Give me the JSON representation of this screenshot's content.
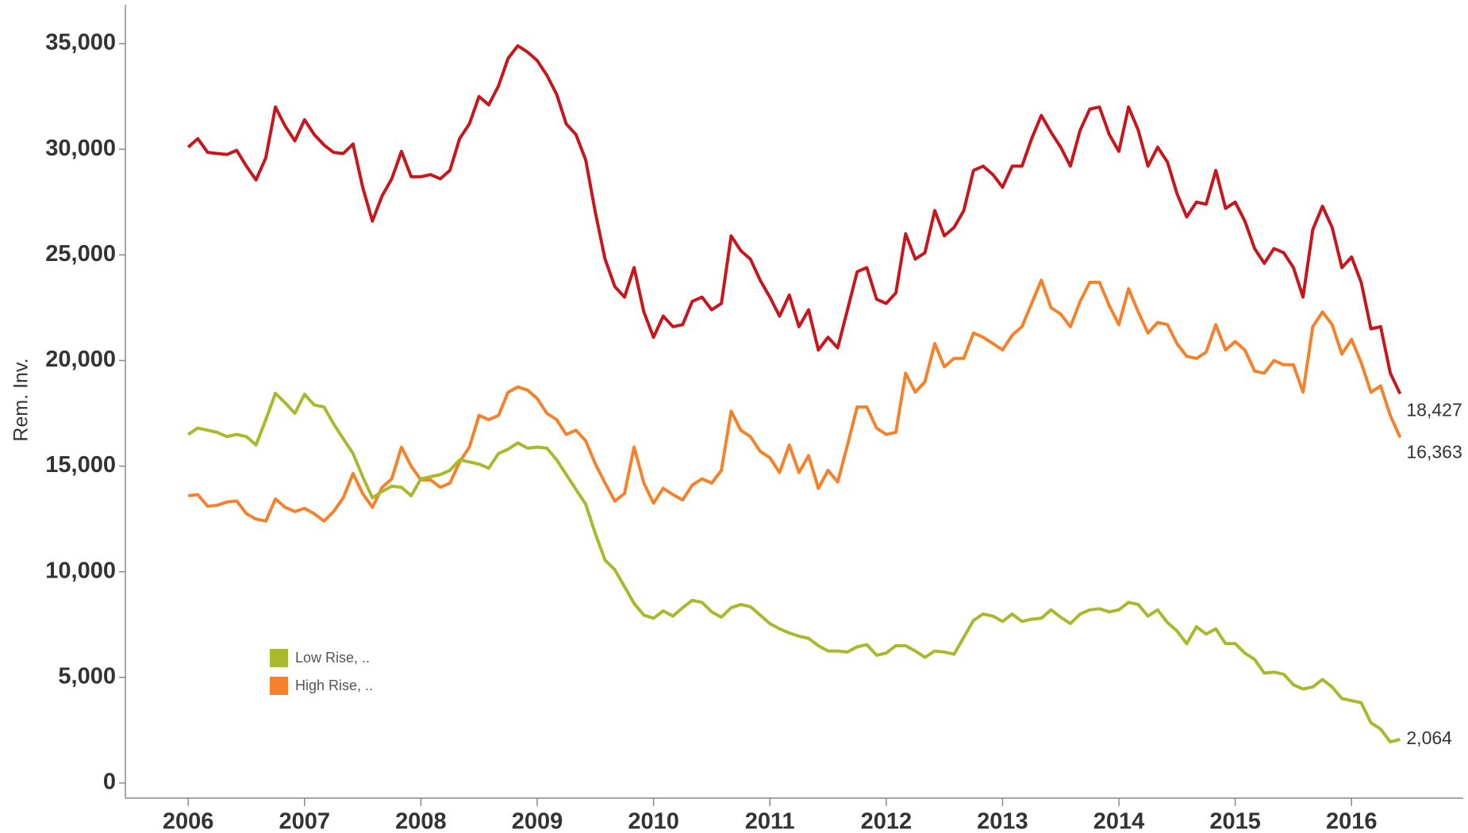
{
  "chart_data": {
    "type": "line",
    "ylabel": "Rem. Inv.",
    "x": [
      2006,
      2006.083,
      2006.167,
      2006.25,
      2006.333,
      2006.417,
      2006.5,
      2006.583,
      2006.667,
      2006.75,
      2006.833,
      2006.917,
      2007,
      2007.083,
      2007.167,
      2007.25,
      2007.333,
      2007.417,
      2007.5,
      2007.583,
      2007.667,
      2007.75,
      2007.833,
      2007.917,
      2008,
      2008.083,
      2008.167,
      2008.25,
      2008.333,
      2008.417,
      2008.5,
      2008.583,
      2008.667,
      2008.75,
      2008.833,
      2008.917,
      2009,
      2009.083,
      2009.167,
      2009.25,
      2009.333,
      2009.417,
      2009.5,
      2009.583,
      2009.667,
      2009.75,
      2009.833,
      2009.917,
      2010,
      2010.083,
      2010.167,
      2010.25,
      2010.333,
      2010.417,
      2010.5,
      2010.583,
      2010.667,
      2010.75,
      2010.833,
      2010.917,
      2011,
      2011.083,
      2011.167,
      2011.25,
      2011.333,
      2011.417,
      2011.5,
      2011.583,
      2011.667,
      2011.75,
      2011.833,
      2011.917,
      2012,
      2012.083,
      2012.167,
      2012.25,
      2012.333,
      2012.417,
      2012.5,
      2012.583,
      2012.667,
      2012.75,
      2012.833,
      2012.917,
      2013,
      2013.083,
      2013.167,
      2013.25,
      2013.333,
      2013.417,
      2013.5,
      2013.583,
      2013.667,
      2013.75,
      2013.833,
      2013.917,
      2014,
      2014.083,
      2014.167,
      2014.25,
      2014.333,
      2014.417,
      2014.5,
      2014.583,
      2014.667,
      2014.75,
      2014.833,
      2014.917,
      2015,
      2015.083,
      2015.167,
      2015.25,
      2015.333,
      2015.417,
      2015.5,
      2015.583,
      2015.667,
      2015.75,
      2015.833,
      2015.917,
      2016,
      2016.083,
      2016.167,
      2016.25,
      2016.333,
      2016.417
    ],
    "series": [
      {
        "color": "#c8161d",
        "values": [
          30100,
          30500,
          29850,
          29800,
          29750,
          29950,
          29200,
          28550,
          29600,
          32000,
          31100,
          30400,
          31400,
          30700,
          30200,
          29850,
          29800,
          30250,
          28200,
          26600,
          27800,
          28600,
          29900,
          28700,
          28700,
          28800,
          28600,
          29000,
          30500,
          31200,
          32500,
          32100,
          33000,
          34300,
          34900,
          34600,
          34200,
          33500,
          32600,
          31200,
          30700,
          29500,
          27000,
          24800,
          23500,
          23000,
          24400,
          22300,
          21100,
          22100,
          21600,
          21700,
          22800,
          23000,
          22400,
          22700,
          25900,
          25200,
          24800,
          23800,
          23000,
          22100,
          23100,
          21600,
          22400,
          20500,
          21100,
          20600,
          22400,
          24200,
          24400,
          22900,
          22700,
          23200,
          26000,
          24800,
          25100,
          27100,
          25900,
          26300,
          27100,
          29000,
          29200,
          28800,
          28200,
          29200,
          29200,
          30500,
          31600,
          30800,
          30100,
          29200,
          30900,
          31900,
          32000,
          30700,
          29900,
          32000,
          30900,
          29200,
          30100,
          29400,
          27900,
          26800,
          27500,
          27400,
          29000,
          27200,
          27500,
          26600,
          25300,
          24600,
          25300,
          25100,
          24400,
          23000,
          26200,
          27300,
          26300,
          24400,
          24900,
          23700,
          21500,
          21600,
          19400,
          18427
        ],
        "value_labels": [
          null,
          null,
          null,
          null,
          null,
          null,
          null,
          null,
          null,
          null,
          null,
          null,
          null,
          null,
          null,
          null,
          null,
          null,
          null,
          null,
          null,
          null,
          null,
          null,
          null,
          null,
          null,
          null,
          null,
          null,
          null,
          null,
          null,
          null,
          null,
          null,
          null,
          null,
          null,
          null,
          null,
          null,
          null,
          null,
          null,
          null,
          null,
          null,
          null,
          null,
          null,
          null,
          null,
          null,
          null,
          null,
          null,
          null,
          null,
          null,
          null,
          null,
          null,
          null,
          null,
          null,
          null,
          null,
          null,
          null,
          null,
          null,
          null,
          null,
          null,
          null,
          null,
          null,
          null,
          null,
          null,
          null,
          null,
          null,
          null,
          null,
          null,
          null,
          null,
          null,
          null,
          null,
          null,
          null,
          null,
          null,
          null,
          null,
          null,
          null,
          null,
          null,
          null,
          null,
          null,
          null,
          null,
          null,
          null,
          null,
          null,
          null,
          null,
          null,
          null,
          null,
          null,
          null,
          null,
          null,
          null,
          null,
          null,
          null,
          null,
          "18,427"
        ]
      },
      {
        "name": "High Rise, ..",
        "color": "#f5822a",
        "values": [
          13600,
          13650,
          13100,
          13150,
          13300,
          13350,
          12750,
          12500,
          12400,
          13450,
          13050,
          12850,
          13000,
          12750,
          12400,
          12850,
          13500,
          14650,
          13700,
          13050,
          14000,
          14400,
          15900,
          15000,
          14350,
          14350,
          14000,
          14200,
          15200,
          15900,
          17400,
          17200,
          17400,
          18500,
          18750,
          18600,
          18200,
          17500,
          17200,
          16500,
          16700,
          16200,
          15100,
          14200,
          13350,
          13700,
          15900,
          14200,
          13250,
          13950,
          13650,
          13400,
          14100,
          14400,
          14200,
          14800,
          17600,
          16700,
          16400,
          15700,
          15400,
          14700,
          16000,
          14700,
          15500,
          13950,
          14800,
          14250,
          16000,
          17800,
          17800,
          16800,
          16500,
          16600,
          19400,
          18500,
          19000,
          20800,
          19700,
          20100,
          20100,
          21300,
          21100,
          20800,
          20500,
          21200,
          21600,
          22700,
          23800,
          22500,
          22200,
          21600,
          22800,
          23700,
          23700,
          22600,
          21700,
          23400,
          22300,
          21300,
          21800,
          21700,
          20800,
          20200,
          20100,
          20400,
          21700,
          20500,
          20900,
          20500,
          19500,
          19400,
          20000,
          19800,
          19800,
          18500,
          21600,
          22300,
          21700,
          20300,
          21000,
          19900,
          18500,
          18800,
          17400,
          16363
        ],
        "value_labels": [
          null,
          null,
          null,
          null,
          null,
          null,
          null,
          null,
          null,
          null,
          null,
          null,
          null,
          null,
          null,
          null,
          null,
          null,
          null,
          null,
          null,
          null,
          null,
          null,
          null,
          null,
          null,
          null,
          null,
          null,
          null,
          null,
          null,
          null,
          null,
          null,
          null,
          null,
          null,
          null,
          null,
          null,
          null,
          null,
          null,
          null,
          null,
          null,
          null,
          null,
          null,
          null,
          null,
          null,
          null,
          null,
          null,
          null,
          null,
          null,
          null,
          null,
          null,
          null,
          null,
          null,
          null,
          null,
          null,
          null,
          null,
          null,
          null,
          null,
          null,
          null,
          null,
          null,
          null,
          null,
          null,
          null,
          null,
          null,
          null,
          null,
          null,
          null,
          null,
          null,
          null,
          null,
          null,
          null,
          null,
          null,
          null,
          null,
          null,
          null,
          null,
          null,
          null,
          null,
          null,
          null,
          null,
          null,
          null,
          null,
          null,
          null,
          null,
          null,
          null,
          null,
          null,
          null,
          null,
          null,
          null,
          null,
          null,
          null,
          null,
          "16,363"
        ]
      },
      {
        "name": "Low Rise, ..",
        "color": "#a8b92b",
        "values": [
          16500,
          16800,
          16700,
          16600,
          16400,
          16500,
          16400,
          16000,
          17200,
          18450,
          18000,
          17500,
          18400,
          17900,
          17800,
          17000,
          16300,
          15600,
          14500,
          13500,
          13800,
          14050,
          14000,
          13600,
          14400,
          14500,
          14600,
          14800,
          15300,
          15200,
          15100,
          14900,
          15600,
          15800,
          16100,
          15850,
          15900,
          15850,
          15300,
          14600,
          13900,
          13200,
          11800,
          10550,
          10100,
          9300,
          8500,
          7950,
          7800,
          8150,
          7900,
          8300,
          8650,
          8550,
          8100,
          7850,
          8300,
          8450,
          8350,
          7950,
          7550,
          7300,
          7100,
          6950,
          6850,
          6500,
          6250,
          6250,
          6200,
          6450,
          6550,
          6050,
          6150,
          6500,
          6500,
          6250,
          5950,
          6250,
          6200,
          6100,
          6900,
          7700,
          8000,
          7900,
          7650,
          8000,
          7650,
          7750,
          7800,
          8200,
          7850,
          7550,
          8000,
          8200,
          8250,
          8100,
          8200,
          8550,
          8450,
          7900,
          8200,
          7600,
          7200,
          6600,
          7400,
          7050,
          7300,
          6600,
          6600,
          6150,
          5850,
          5200,
          5250,
          5150,
          4650,
          4450,
          4550,
          4900,
          4550,
          4000,
          3900,
          3800,
          2850,
          2550,
          1950,
          2064
        ],
        "value_labels": [
          null,
          null,
          null,
          null,
          null,
          null,
          null,
          null,
          null,
          null,
          null,
          null,
          null,
          null,
          null,
          null,
          null,
          null,
          null,
          null,
          null,
          null,
          null,
          null,
          null,
          null,
          null,
          null,
          null,
          null,
          null,
          null,
          null,
          null,
          null,
          null,
          null,
          null,
          null,
          null,
          null,
          null,
          null,
          null,
          null,
          null,
          null,
          null,
          null,
          null,
          null,
          null,
          null,
          null,
          null,
          null,
          null,
          null,
          null,
          null,
          null,
          null,
          null,
          null,
          null,
          null,
          null,
          null,
          null,
          null,
          null,
          null,
          null,
          null,
          null,
          null,
          null,
          null,
          null,
          null,
          null,
          null,
          null,
          null,
          null,
          null,
          null,
          null,
          null,
          null,
          null,
          null,
          null,
          null,
          null,
          null,
          null,
          null,
          null,
          null,
          null,
          null,
          null,
          null,
          null,
          null,
          null,
          null,
          null,
          null,
          null,
          null,
          null,
          null,
          null,
          null,
          null,
          null,
          null,
          null,
          null,
          null,
          null,
          null,
          null,
          "2,064"
        ]
      }
    ],
    "xlim": [
      2005.46,
      2016.96
    ],
    "xticks": [
      2006,
      2007,
      2008,
      2009,
      2010,
      2011,
      2012,
      2013,
      2014,
      2015,
      2016
    ],
    "ylim": [
      -713,
      36840
    ],
    "yticks": [
      0,
      {
        "value": 5000,
        "label": "5,000"
      },
      {
        "value": 10000,
        "label": "10,000"
      },
      {
        "value": 15000,
        "label": "15,000"
      },
      {
        "value": 20000,
        "label": "20,000"
      },
      {
        "value": 25000,
        "label": "25,000"
      },
      {
        "value": 30000,
        "label": "30,000"
      },
      {
        "value": 35000,
        "label": "35,000"
      }
    ],
    "legend": "lower left",
    "grid": false
  }
}
